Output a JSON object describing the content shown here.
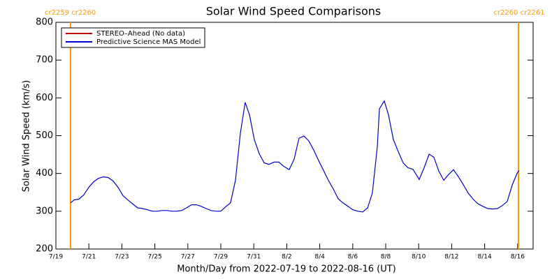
{
  "chart_data": {
    "type": "line",
    "title": "Solar Wind Speed Comparisons",
    "xlabel": "Month/Day from 2022-07-19 to 2022-08-16 (UT)",
    "ylabel": "Solar Wind Speed (km/s)",
    "xlim": [
      0,
      28.94
    ],
    "xticks": [
      {
        "value": 0,
        "label": "7/19"
      },
      {
        "value": 2,
        "label": "7/21"
      },
      {
        "value": 4,
        "label": "7/23"
      },
      {
        "value": 6,
        "label": "7/25"
      },
      {
        "value": 8,
        "label": "7/27"
      },
      {
        "value": 10,
        "label": "7/29"
      },
      {
        "value": 12,
        "label": "7/31"
      },
      {
        "value": 14,
        "label": "8/2"
      },
      {
        "value": 16,
        "label": "8/4"
      },
      {
        "value": 18,
        "label": "8/6"
      },
      {
        "value": 20,
        "label": "8/8"
      },
      {
        "value": 22,
        "label": "8/10"
      },
      {
        "value": 24,
        "label": "8/12"
      },
      {
        "value": 26,
        "label": "8/14"
      },
      {
        "value": 28,
        "label": "8/16"
      }
    ],
    "ylim": [
      200,
      800
    ],
    "yticks": [
      200,
      300,
      400,
      500,
      600,
      700,
      800
    ],
    "legend": "upper left",
    "vlines": [
      {
        "x": 0.89,
        "label": "cr2259 cr2260",
        "color": "#ff9900"
      },
      {
        "x": 28.05,
        "label": "cr2260 cr2261",
        "color": "#ff9900"
      }
    ],
    "series": [
      {
        "name": "STEREO–Ahead (No data)",
        "color": "#c00000",
        "x": [],
        "values": []
      },
      {
        "name": "Predictive Science MAS Model",
        "color": "#0000cc",
        "x": [
          0.89,
          1.1,
          1.4,
          1.69,
          1.99,
          2.29,
          2.58,
          2.88,
          3.18,
          3.47,
          3.77,
          4.07,
          4.36,
          4.66,
          4.96,
          5.25,
          5.55,
          5.85,
          6.14,
          6.44,
          6.74,
          7.03,
          7.33,
          7.63,
          7.92,
          8.22,
          8.52,
          8.81,
          9.11,
          9.41,
          9.7,
          10.0,
          10.3,
          10.59,
          10.89,
          11.19,
          11.48,
          11.74,
          12.03,
          12.33,
          12.63,
          12.92,
          13.22,
          13.52,
          13.81,
          14.15,
          14.45,
          14.74,
          15.04,
          15.34,
          15.63,
          15.93,
          16.23,
          16.52,
          16.82,
          17.12,
          17.41,
          17.71,
          18.01,
          18.3,
          18.6,
          18.9,
          19.19,
          19.49,
          19.62,
          19.91,
          20.17,
          20.46,
          20.76,
          21.06,
          21.35,
          21.65,
          22.03,
          22.33,
          22.63,
          22.92,
          23.22,
          23.52,
          23.81,
          24.11,
          24.41,
          24.7,
          25.0,
          25.3,
          25.59,
          25.89,
          26.18,
          26.48,
          26.78,
          27.07,
          27.37,
          27.67,
          27.96,
          28.09
        ],
        "values": [
          322,
          330,
          332,
          343,
          363,
          378,
          387,
          391,
          389,
          380,
          363,
          341,
          330,
          319,
          309,
          307,
          304,
          300,
          300,
          302,
          302,
          300,
          300,
          302,
          309,
          317,
          317,
          313,
          307,
          302,
          300,
          300,
          312,
          322,
          382,
          508,
          588,
          555,
          490,
          452,
          428,
          424,
          430,
          430,
          419,
          410,
          438,
          493,
          499,
          486,
          462,
          434,
          408,
          382,
          359,
          333,
          322,
          313,
          304,
          300,
          298,
          309,
          348,
          471,
          571,
          592,
          555,
          490,
          458,
          428,
          415,
          411,
          384,
          415,
          451,
          443,
          406,
          382,
          397,
          410,
          391,
          371,
          348,
          332,
          320,
          313,
          307,
          306,
          307,
          315,
          326,
          369,
          400,
          408
        ]
      }
    ]
  }
}
